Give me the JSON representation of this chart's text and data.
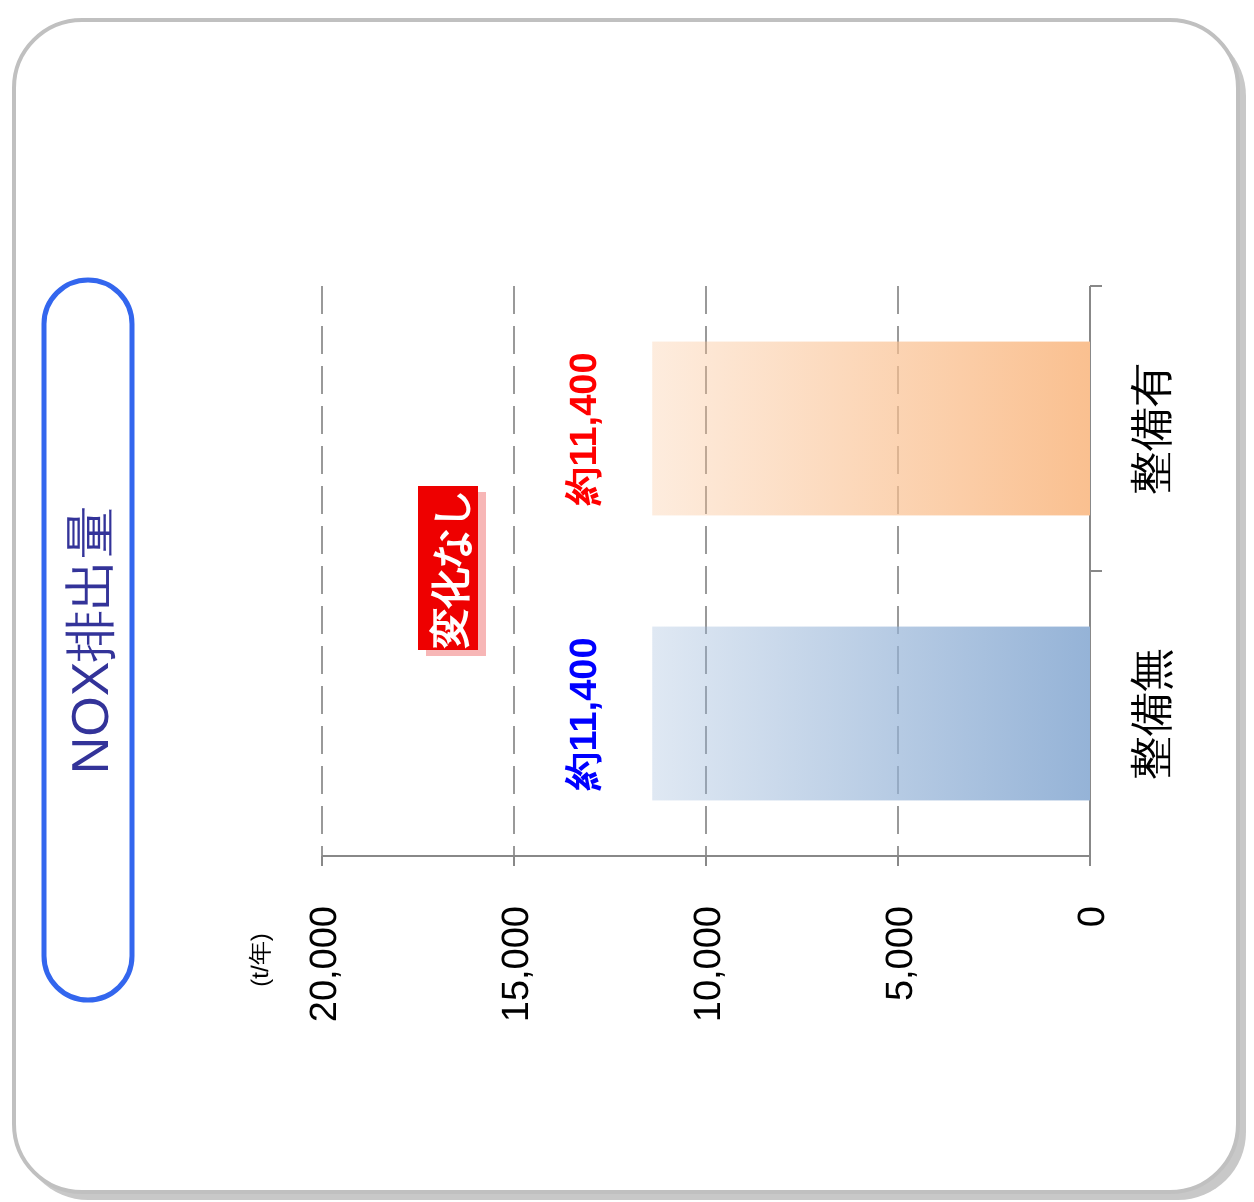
{
  "chart_data": {
    "type": "bar",
    "orientation": "horizontal",
    "title": "NOX排出量",
    "categories": [
      "整備有",
      "整備無"
    ],
    "values": [
      11400,
      11400
    ],
    "colors": [
      "#fac090",
      "#95b3d7"
    ],
    "value_labels": [
      "約11,400",
      "約11,400"
    ],
    "xlim": [
      20000,
      0
    ],
    "xticks": [
      {
        "value": 20000,
        "label": "20,000"
      },
      {
        "value": 15000,
        "label": "15,000"
      },
      {
        "value": 10000,
        "label": "10,000"
      },
      {
        "value": 5000,
        "label": "5,000"
      },
      {
        "value": 0,
        "label": "0"
      }
    ],
    "grid": "x",
    "annotations": [
      "変化なし",
      "(t/年)"
    ]
  }
}
